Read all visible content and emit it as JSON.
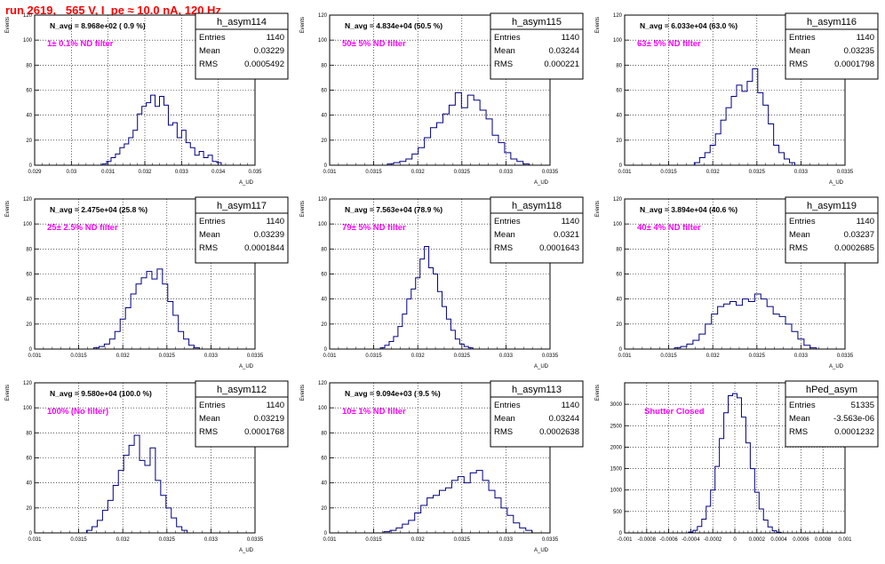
{
  "canvas_title": "run 2619,   565 V, I_pe ≈ 10.0 nA, 120 Hz",
  "colors": {
    "title": "#ff0000",
    "filter_label": "#ff00ff",
    "histogram": "#000080",
    "grid": "#000000"
  },
  "stat_labels": [
    "Entries",
    "Mean",
    "RMS"
  ],
  "chart_data": [
    {
      "type": "histogram",
      "hist_name": "h_asym114",
      "navg_label": "N_avg = 8.968e+02 ( 0.9 %)",
      "filter_label": "1± 0.1% ND filter",
      "entries": "1140",
      "mean": "0.03229",
      "rms": "0.0005492",
      "xlabel": "A_UD",
      "ylabel": "Events",
      "xlim": [
        0.029,
        0.035
      ],
      "ylim": [
        0,
        120
      ],
      "xticks": [
        "0.029",
        "0.03",
        "0.031",
        "0.032",
        "0.033",
        "0.034",
        "0.035"
      ],
      "yticks": [
        "0",
        "20",
        "40",
        "60",
        "80",
        "100",
        "120"
      ],
      "grid": true,
      "bins_x": [
        0.0309,
        0.03102,
        0.03114,
        0.03126,
        0.03138,
        0.0315,
        0.03162,
        0.03174,
        0.03186,
        0.03198,
        0.0321,
        0.03222,
        0.03234,
        0.03246,
        0.03258,
        0.0327,
        0.03282,
        0.03294,
        0.03306,
        0.03318,
        0.0333,
        0.03342,
        0.03354,
        0.03366,
        0.03378,
        0.0339,
        0.03402
      ],
      "values": [
        1,
        3,
        6,
        9,
        14,
        17,
        22,
        28,
        41,
        47,
        50,
        56,
        47,
        55,
        48,
        32,
        34,
        22,
        28,
        18,
        14,
        8,
        11,
        6,
        8,
        3,
        2
      ]
    },
    {
      "type": "histogram",
      "hist_name": "h_asym115",
      "navg_label": "N_avg = 4.834e+04 (50.5 %)",
      "filter_label": "50± 5% ND filter",
      "entries": "1140",
      "mean": "0.03244",
      "rms": "0.000221",
      "xlabel": "A_UD",
      "ylabel": "Events",
      "xlim": [
        0.031,
        0.0335
      ],
      "ylim": [
        0,
        120
      ],
      "xticks": [
        "0.031",
        "0.0315",
        "0.032",
        "0.0325",
        "0.033",
        "0.0335"
      ],
      "yticks": [
        "0",
        "20",
        "40",
        "60",
        "80",
        "100",
        "120"
      ],
      "grid": true,
      "bins_x": [
        0.03169,
        0.03176,
        0.03183,
        0.0319,
        0.03197,
        0.03204,
        0.03211,
        0.03218,
        0.03225,
        0.03232,
        0.03239,
        0.03246,
        0.03253,
        0.0326,
        0.03267,
        0.03274,
        0.03281,
        0.03288,
        0.03295,
        0.03302,
        0.03309,
        0.03316,
        0.03323
      ],
      "values": [
        1,
        2,
        3,
        5,
        9,
        14,
        22,
        30,
        34,
        41,
        48,
        58,
        46,
        56,
        52,
        44,
        37,
        24,
        18,
        10,
        5,
        3,
        1
      ]
    },
    {
      "type": "histogram",
      "hist_name": "h_asym116",
      "navg_label": "N_avg = 6.033e+04 (63.0 %)",
      "filter_label": "63± 5% ND filter",
      "entries": "1140",
      "mean": "0.03235",
      "rms": "0.0001798",
      "xlabel": "A_UD",
      "ylabel": "Events",
      "xlim": [
        0.031,
        0.0335
      ],
      "ylim": [
        0,
        120
      ],
      "xticks": [
        "0.031",
        "0.0315",
        "0.032",
        "0.0325",
        "0.033",
        "0.0335"
      ],
      "yticks": [
        "0",
        "20",
        "40",
        "60",
        "80",
        "100",
        "120"
      ],
      "grid": true,
      "bins_x": [
        0.03182,
        0.03188,
        0.03194,
        0.032,
        0.03206,
        0.03212,
        0.03218,
        0.03224,
        0.0323,
        0.03236,
        0.03242,
        0.03248,
        0.03254,
        0.0326,
        0.03266,
        0.03272,
        0.03278,
        0.03284,
        0.0329
      ],
      "values": [
        2,
        6,
        10,
        16,
        25,
        36,
        46,
        55,
        64,
        59,
        67,
        77,
        58,
        48,
        33,
        16,
        10,
        5,
        2
      ]
    },
    {
      "type": "histogram",
      "hist_name": "h_asym117",
      "navg_label": "N_avg = 2.475e+04 (25.8 %)",
      "filter_label": "25± 2.5% ND filter",
      "entries": "1140",
      "mean": "0.03239",
      "rms": "0.0001844",
      "xlabel": "A_UD",
      "ylabel": "Events",
      "xlim": [
        0.031,
        0.0335
      ],
      "ylim": [
        0,
        120
      ],
      "xticks": [
        "0.031",
        "0.0315",
        "0.032",
        "0.0325",
        "0.033",
        "0.0335"
      ],
      "yticks": [
        "0",
        "20",
        "40",
        "60",
        "80",
        "100",
        "120"
      ],
      "grid": true,
      "bins_x": [
        0.0317,
        0.03176,
        0.03182,
        0.03188,
        0.03194,
        0.032,
        0.03206,
        0.03212,
        0.03218,
        0.03224,
        0.0323,
        0.03236,
        0.03242,
        0.03248,
        0.03254,
        0.0326,
        0.03266,
        0.03272,
        0.03278,
        0.03284
      ],
      "values": [
        1,
        2,
        4,
        8,
        14,
        24,
        33,
        44,
        52,
        57,
        62,
        56,
        64,
        52,
        38,
        27,
        14,
        8,
        3,
        1
      ]
    },
    {
      "type": "histogram",
      "hist_name": "h_asym118",
      "navg_label": "N_avg = 7.563e+04 (78.9 %)",
      "filter_label": "79± 5% ND filter",
      "entries": "1140",
      "mean": "0.0321",
      "rms": "0.0001643",
      "xlabel": "A_UD",
      "ylabel": "Events",
      "xlim": [
        0.031,
        0.0335
      ],
      "ylim": [
        0,
        120
      ],
      "xticks": [
        "0.031",
        "0.0315",
        "0.032",
        "0.0325",
        "0.033",
        "0.0335"
      ],
      "yticks": [
        "0",
        "20",
        "40",
        "60",
        "80",
        "100",
        "120"
      ],
      "grid": true,
      "bins_x": [
        0.0316,
        0.03165,
        0.0317,
        0.03175,
        0.0318,
        0.03185,
        0.0319,
        0.03195,
        0.032,
        0.03205,
        0.0321,
        0.03215,
        0.0322,
        0.03225,
        0.0323,
        0.03235,
        0.0324,
        0.03245,
        0.0325,
        0.03255,
        0.0326
      ],
      "values": [
        1,
        3,
        6,
        10,
        18,
        28,
        40,
        48,
        57,
        72,
        82,
        65,
        60,
        46,
        34,
        24,
        15,
        8,
        4,
        2,
        1
      ]
    },
    {
      "type": "histogram",
      "hist_name": "h_asym119",
      "navg_label": "N_avg = 3.894e+04 (40.6 %)",
      "filter_label": "40± 4% ND filter",
      "entries": "1140",
      "mean": "0.03237",
      "rms": "0.0002685",
      "xlabel": "A_UD",
      "ylabel": "Events",
      "xlim": [
        0.031,
        0.0335
      ],
      "ylim": [
        0,
        120
      ],
      "xticks": [
        "0.031",
        "0.0315",
        "0.032",
        "0.0325",
        "0.033",
        "0.0335"
      ],
      "yticks": [
        "0",
        "20",
        "40",
        "60",
        "80",
        "100",
        "120"
      ],
      "grid": true,
      "bins_x": [
        0.0316,
        0.03167,
        0.03174,
        0.03181,
        0.03188,
        0.03195,
        0.03202,
        0.03209,
        0.03216,
        0.03223,
        0.0323,
        0.03237,
        0.03244,
        0.03251,
        0.03258,
        0.03265,
        0.03272,
        0.03279,
        0.03286,
        0.03293,
        0.033,
        0.03307,
        0.03314
      ],
      "values": [
        1,
        2,
        4,
        7,
        12,
        20,
        28,
        34,
        36,
        38,
        35,
        40,
        38,
        44,
        40,
        34,
        28,
        26,
        20,
        14,
        8,
        3,
        1
      ]
    },
    {
      "type": "histogram",
      "hist_name": "h_asym112",
      "navg_label": "N_avg = 9.580e+04 (100.0 %)",
      "filter_label": "100% (No filter)",
      "entries": "1140",
      "mean": "0.03219",
      "rms": "0.0001768",
      "xlabel": "A_UD",
      "ylabel": "Events",
      "xlim": [
        0.031,
        0.0335
      ],
      "ylim": [
        0,
        120
      ],
      "xticks": [
        "0.031",
        "0.0315",
        "0.032",
        "0.0325",
        "0.033",
        "0.0335"
      ],
      "yticks": [
        "0",
        "20",
        "40",
        "60",
        "80",
        "100",
        "120"
      ],
      "grid": true,
      "bins_x": [
        0.03162,
        0.03168,
        0.03174,
        0.0318,
        0.03186,
        0.03192,
        0.03198,
        0.03204,
        0.0321,
        0.03216,
        0.03222,
        0.03228,
        0.03234,
        0.0324,
        0.03246,
        0.03252,
        0.03258,
        0.03264,
        0.0327
      ],
      "values": [
        2,
        5,
        10,
        18,
        26,
        38,
        50,
        62,
        70,
        78,
        58,
        54,
        68,
        42,
        30,
        20,
        12,
        5,
        2
      ]
    },
    {
      "type": "histogram",
      "hist_name": "h_asym113",
      "navg_label": "N_avg = 9.094e+03 ( 9.5 %)",
      "filter_label": "10± 1% ND filter",
      "entries": "1140",
      "mean": "0.03244",
      "rms": "0.0002638",
      "xlabel": "A_UD",
      "ylabel": "Events",
      "xlim": [
        0.031,
        0.0335
      ],
      "ylim": [
        0,
        120
      ],
      "xticks": [
        "0.031",
        "0.0315",
        "0.032",
        "0.0325",
        "0.033",
        "0.0335"
      ],
      "yticks": [
        "0",
        "20",
        "40",
        "60",
        "80",
        "100",
        "120"
      ],
      "grid": true,
      "bins_x": [
        0.03165,
        0.03172,
        0.03179,
        0.03186,
        0.03193,
        0.032,
        0.03207,
        0.03214,
        0.03221,
        0.03228,
        0.03235,
        0.03242,
        0.03249,
        0.03256,
        0.03263,
        0.0327,
        0.03277,
        0.03284,
        0.03291,
        0.03298,
        0.03305,
        0.03312,
        0.03319,
        0.03326
      ],
      "values": [
        1,
        2,
        4,
        7,
        10,
        16,
        22,
        28,
        30,
        34,
        36,
        42,
        45,
        40,
        48,
        50,
        42,
        34,
        28,
        20,
        14,
        8,
        4,
        2
      ]
    },
    {
      "type": "histogram",
      "hist_name": "hPed_asym",
      "navg_label": "",
      "filter_label": "Shutter Closed",
      "entries": "51335",
      "mean": "-3.563e-06",
      "rms": "0.0001232",
      "xlabel": "",
      "ylabel": "Events",
      "xlim": [
        -0.001,
        0.001
      ],
      "ylim": [
        0,
        3500
      ],
      "xticks": [
        "-0.001",
        "-0.0008",
        "-0.0006",
        "-0.0004",
        "-0.0002",
        "0",
        "0.0002",
        "0.0004",
        "0.0006",
        "0.0008",
        "0.001"
      ],
      "yticks": [
        "0",
        "500",
        "1000",
        "1500",
        "2000",
        "2500",
        "3000"
      ],
      "grid": true,
      "bins_x": [
        -0.0004,
        -0.00036,
        -0.00032,
        -0.00028,
        -0.00024,
        -0.0002,
        -0.00016,
        -0.00012,
        -8e-05,
        -4e-05,
        0,
        4e-05,
        8e-05,
        0.00012,
        0.00016,
        0.0002,
        0.00024,
        0.00028,
        0.00032,
        0.00036,
        0.0004
      ],
      "values": [
        20,
        60,
        150,
        320,
        620,
        1000,
        1550,
        2200,
        2800,
        3200,
        3250,
        3150,
        2700,
        2100,
        1500,
        950,
        560,
        300,
        140,
        50,
        15
      ]
    }
  ]
}
